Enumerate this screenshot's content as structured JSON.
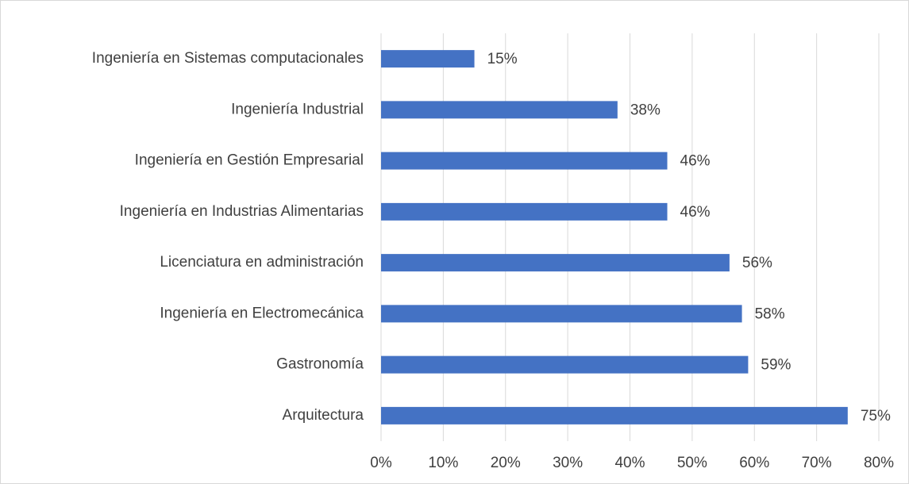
{
  "chart_data": {
    "type": "bar",
    "orientation": "horizontal",
    "categories": [
      "Ingeniería en Sistemas computacionales",
      "Ingeniería Industrial",
      "Ingeniería en Gestión Empresarial",
      "Ingeniería en Industrias Alimentarias",
      "Licenciatura en administración",
      "Ingeniería en Electromecánica",
      "Gastronomía",
      "Arquitectura"
    ],
    "values": [
      15,
      38,
      46,
      46,
      56,
      58,
      59,
      75
    ],
    "value_labels": [
      "15%",
      "38%",
      "46%",
      "46%",
      "56%",
      "58%",
      "59%",
      "75%"
    ],
    "color": "#4472c4",
    "xlim": [
      0,
      80
    ],
    "xticks": [
      {
        "value": 0,
        "label": "0%"
      },
      {
        "value": 10,
        "label": "10%"
      },
      {
        "value": 20,
        "label": "20%"
      },
      {
        "value": 30,
        "label": "30%"
      },
      {
        "value": 40,
        "label": "40%"
      },
      {
        "value": 50,
        "label": "50%"
      },
      {
        "value": 60,
        "label": "60%"
      },
      {
        "value": 70,
        "label": "70%"
      },
      {
        "value": 80,
        "label": "80%"
      }
    ],
    "grid": true
  }
}
